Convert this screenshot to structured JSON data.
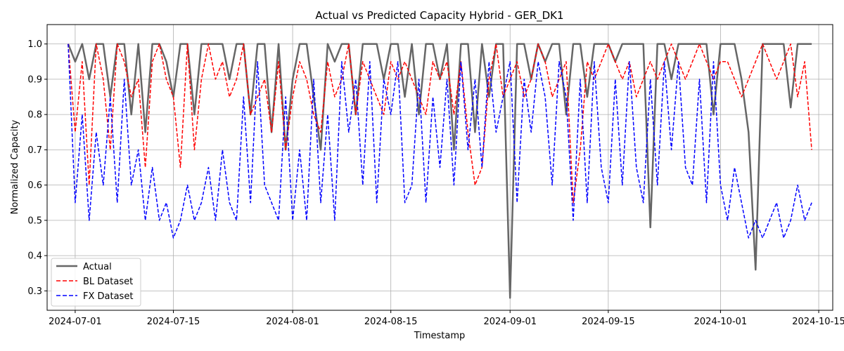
{
  "chart_data": {
    "type": "line",
    "title": "Actual vs Predicted Capacity Hybrid - GER_DK1",
    "xlabel": "Timestamp",
    "ylabel": "Normalized Capacity",
    "x_range": [
      "2024-06-27",
      "2024-10-17"
    ],
    "ylim": [
      0.245,
      1.055
    ],
    "grid": true,
    "legend_position": "lower-left",
    "x_ticks": [
      "2024-07-01",
      "2024-07-15",
      "2024-08-01",
      "2024-08-15",
      "2024-09-01",
      "2024-09-15",
      "2024-10-01",
      "2024-10-15"
    ],
    "y_ticks": [
      "0.3",
      "0.4",
      "0.5",
      "0.6",
      "0.7",
      "0.8",
      "0.9",
      "1.0"
    ],
    "y_tick_values": [
      0.3,
      0.4,
      0.5,
      0.6,
      0.7,
      0.8,
      0.9,
      1.0
    ],
    "x_start": "2024-06-30",
    "x_step_days": 1,
    "series": [
      {
        "name": "Actual",
        "color": "#666666",
        "dash": "solid",
        "values": [
          1.0,
          0.95,
          1.0,
          0.9,
          1.0,
          1.0,
          0.85,
          1.0,
          1.0,
          0.8,
          1.0,
          0.75,
          1.0,
          1.0,
          0.95,
          0.85,
          1.0,
          1.0,
          0.8,
          1.0,
          1.0,
          1.0,
          1.0,
          0.9,
          1.0,
          1.0,
          0.8,
          1.0,
          1.0,
          0.75,
          1.0,
          0.7,
          0.9,
          1.0,
          1.0,
          0.85,
          0.7,
          1.0,
          0.95,
          1.0,
          1.0,
          0.8,
          1.0,
          1.0,
          1.0,
          0.9,
          1.0,
          1.0,
          0.85,
          1.0,
          0.8,
          1.0,
          1.0,
          0.9,
          1.0,
          0.7,
          1.0,
          1.0,
          0.75,
          1.0,
          0.85,
          1.0,
          1.0,
          0.28,
          1.0,
          1.0,
          0.9,
          1.0,
          0.95,
          1.0,
          1.0,
          0.8,
          1.0,
          1.0,
          0.85,
          1.0,
          1.0,
          1.0,
          0.95,
          1.0,
          1.0,
          1.0,
          1.0,
          0.48,
          1.0,
          1.0,
          0.9,
          1.0,
          1.0,
          1.0,
          1.0,
          1.0,
          0.8,
          1.0,
          1.0,
          1.0,
          0.9,
          0.75,
          0.36,
          1.0,
          1.0,
          1.0,
          1.0,
          0.82,
          1.0,
          1.0,
          1.0
        ]
      },
      {
        "name": "BL Dataset",
        "color": "#ff0000",
        "dash": "dashed",
        "values": [
          1.0,
          0.75,
          0.95,
          0.6,
          1.0,
          0.9,
          0.7,
          1.0,
          0.95,
          0.85,
          0.9,
          0.65,
          0.95,
          1.0,
          0.9,
          0.85,
          0.65,
          1.0,
          0.7,
          0.9,
          1.0,
          0.9,
          0.95,
          0.85,
          0.9,
          1.0,
          0.8,
          0.85,
          0.9,
          0.75,
          0.95,
          0.7,
          0.85,
          0.95,
          0.9,
          0.8,
          0.75,
          0.95,
          0.85,
          0.9,
          1.0,
          0.8,
          0.95,
          0.9,
          0.85,
          0.8,
          0.95,
          0.9,
          0.95,
          0.9,
          0.85,
          0.8,
          0.95,
          0.9,
          0.95,
          0.8,
          0.95,
          0.75,
          0.6,
          0.65,
          0.9,
          1.0,
          0.85,
          0.9,
          0.95,
          0.85,
          0.9,
          1.0,
          0.95,
          0.85,
          0.9,
          0.95,
          0.55,
          0.7,
          0.95,
          0.9,
          0.95,
          1.0,
          0.95,
          0.9,
          0.95,
          0.85,
          0.9,
          0.95,
          0.9,
          0.95,
          1.0,
          0.95,
          0.9,
          0.95,
          1.0,
          0.95,
          0.9,
          0.95,
          0.95,
          0.9,
          0.85,
          0.9,
          0.95,
          1.0,
          0.95,
          0.9,
          0.95,
          1.0,
          0.85,
          0.95,
          0.7
        ]
      },
      {
        "name": "FX Dataset",
        "color": "#0000ff",
        "dash": "dashed",
        "values": [
          1.0,
          0.55,
          0.8,
          0.5,
          0.75,
          0.6,
          0.85,
          0.55,
          0.9,
          0.6,
          0.7,
          0.5,
          0.65,
          0.5,
          0.55,
          0.45,
          0.5,
          0.6,
          0.5,
          0.55,
          0.65,
          0.5,
          0.7,
          0.55,
          0.5,
          0.85,
          0.55,
          0.95,
          0.6,
          0.55,
          0.5,
          0.85,
          0.5,
          0.7,
          0.5,
          0.9,
          0.55,
          0.8,
          0.5,
          0.95,
          0.75,
          0.9,
          0.6,
          0.95,
          0.55,
          0.9,
          0.8,
          0.95,
          0.55,
          0.6,
          0.9,
          0.55,
          0.85,
          0.65,
          0.9,
          0.6,
          0.95,
          0.7,
          0.9,
          0.65,
          0.95,
          0.75,
          0.85,
          0.95,
          0.55,
          0.9,
          0.75,
          0.95,
          0.85,
          0.6,
          0.95,
          0.85,
          0.5,
          0.9,
          0.55,
          0.95,
          0.65,
          0.55,
          0.9,
          0.6,
          0.95,
          0.65,
          0.55,
          0.9,
          0.6,
          0.95,
          0.7,
          0.95,
          0.65,
          0.6,
          0.9,
          0.55,
          0.95,
          0.6,
          0.5,
          0.65,
          0.55,
          0.45,
          0.5,
          0.45,
          0.5,
          0.55,
          0.45,
          0.5,
          0.6,
          0.5,
          0.55
        ]
      }
    ]
  }
}
